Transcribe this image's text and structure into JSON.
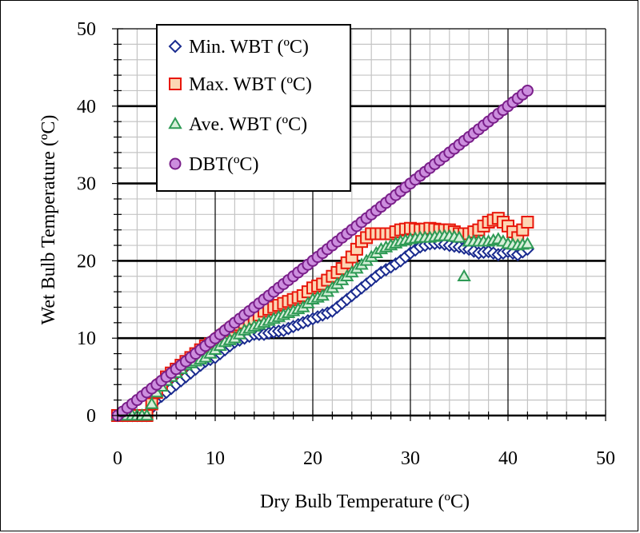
{
  "chart_data": {
    "type": "scatter",
    "xlabel": "Dry Bulb Temperature (ºC)",
    "ylabel": "Wet Bulb Temperature (ºC)",
    "xlim": [
      0,
      50
    ],
    "ylim": [
      0,
      50
    ],
    "xticks": [
      "0",
      "10",
      "20",
      "30",
      "40",
      "50"
    ],
    "yticks": [
      "0",
      "10",
      "20",
      "30",
      "40",
      "50"
    ],
    "grid": true,
    "legend_position": "top-left",
    "series": [
      {
        "name": "Min. WBT (ºC)",
        "marker": "diamond",
        "stroke": "#1a2b8f",
        "fill": "#ffffff",
        "x": [
          0,
          1,
          2,
          3,
          4,
          5,
          6,
          7,
          8,
          9,
          10,
          11,
          12,
          13,
          14,
          15,
          16,
          17,
          18,
          19,
          20,
          21,
          22,
          23,
          24,
          25,
          26,
          27,
          28,
          29,
          30,
          31,
          32,
          33,
          34,
          35,
          36,
          37,
          38,
          39,
          40,
          41,
          42
        ],
        "y": [
          0,
          0,
          0,
          0,
          2,
          3,
          4,
          5,
          6,
          7,
          7.5,
          8.5,
          9.5,
          10,
          10.5,
          10.5,
          10.8,
          11,
          11.5,
          12,
          12.5,
          13,
          13.5,
          14.5,
          15.5,
          16.5,
          17.5,
          18.5,
          19.2,
          20,
          21,
          21.8,
          22.2,
          22.3,
          22,
          21.8,
          21.5,
          21,
          21.2,
          20.8,
          21.2,
          20.8,
          21.5
        ]
      },
      {
        "name": "Max. WBT (ºC)",
        "marker": "square",
        "stroke": "#e8170b",
        "fill": "#fcd6b4",
        "x": [
          0,
          1,
          2,
          3,
          4,
          5,
          6,
          7,
          8,
          9,
          10,
          11,
          12,
          13,
          14,
          15,
          16,
          17,
          18,
          19,
          20,
          21,
          22,
          23,
          24,
          25,
          26,
          27,
          28,
          29,
          30,
          31,
          32,
          33,
          34,
          35,
          36,
          37,
          38,
          39,
          40,
          41,
          42
        ],
        "y": [
          0,
          0,
          0,
          0,
          3,
          5,
          6,
          7,
          8,
          9,
          9.5,
          10.5,
          11.5,
          12,
          12.5,
          13.5,
          14,
          14.5,
          15,
          15.5,
          16.5,
          17,
          18,
          19,
          20.5,
          22.5,
          23.5,
          23.5,
          23.5,
          24,
          24.2,
          24,
          24.2,
          24,
          24,
          23.5,
          23.5,
          24,
          25,
          25.5,
          24.5,
          23,
          25
        ]
      },
      {
        "name": "Ave. WBT (ºC)",
        "marker": "triangle",
        "stroke": "#2e9a55",
        "fill": "#d7efd9",
        "x": [
          0,
          1,
          2,
          3,
          4,
          5,
          6,
          7,
          8,
          9,
          10,
          11,
          12,
          13,
          14,
          15,
          16,
          17,
          18,
          19,
          20,
          21,
          22,
          23,
          24,
          25,
          26,
          27,
          28,
          29,
          30,
          31,
          32,
          33,
          34,
          35,
          35.5,
          36,
          37,
          38,
          39,
          40,
          41,
          42
        ],
        "y": [
          0,
          0,
          0,
          0,
          3,
          4.5,
          5.5,
          6.5,
          7,
          7.5,
          8.5,
          9.5,
          10,
          11,
          11.5,
          12,
          12.5,
          13,
          13.5,
          14,
          15,
          15.5,
          16.5,
          17.5,
          18.5,
          19.5,
          20.5,
          21.5,
          22,
          22.5,
          22.8,
          23,
          23,
          23.2,
          23.2,
          23,
          18,
          22.5,
          22.5,
          22.5,
          22.8,
          22.2,
          22,
          22.2
        ]
      },
      {
        "name": "DBT(ºC)",
        "marker": "circle",
        "stroke": "#7a1f8a",
        "fill": "#cc8ede",
        "x": [
          0,
          1,
          2,
          3,
          4,
          5,
          6,
          7,
          8,
          9,
          10,
          11,
          12,
          13,
          14,
          15,
          16,
          17,
          18,
          19,
          20,
          21,
          22,
          23,
          24,
          25,
          26,
          27,
          28,
          29,
          30,
          31,
          32,
          33,
          34,
          35,
          36,
          37,
          38,
          39,
          40,
          41,
          42
        ],
        "y": [
          0,
          1,
          2,
          3,
          4,
          5,
          6,
          7,
          8,
          9,
          10,
          11,
          12,
          13,
          14,
          15,
          16,
          17,
          18,
          19,
          20,
          21,
          22,
          23,
          24,
          25,
          26,
          27,
          28,
          29,
          30,
          31,
          32,
          33,
          34,
          35,
          36,
          37,
          38,
          39,
          40,
          41,
          42
        ]
      }
    ]
  }
}
